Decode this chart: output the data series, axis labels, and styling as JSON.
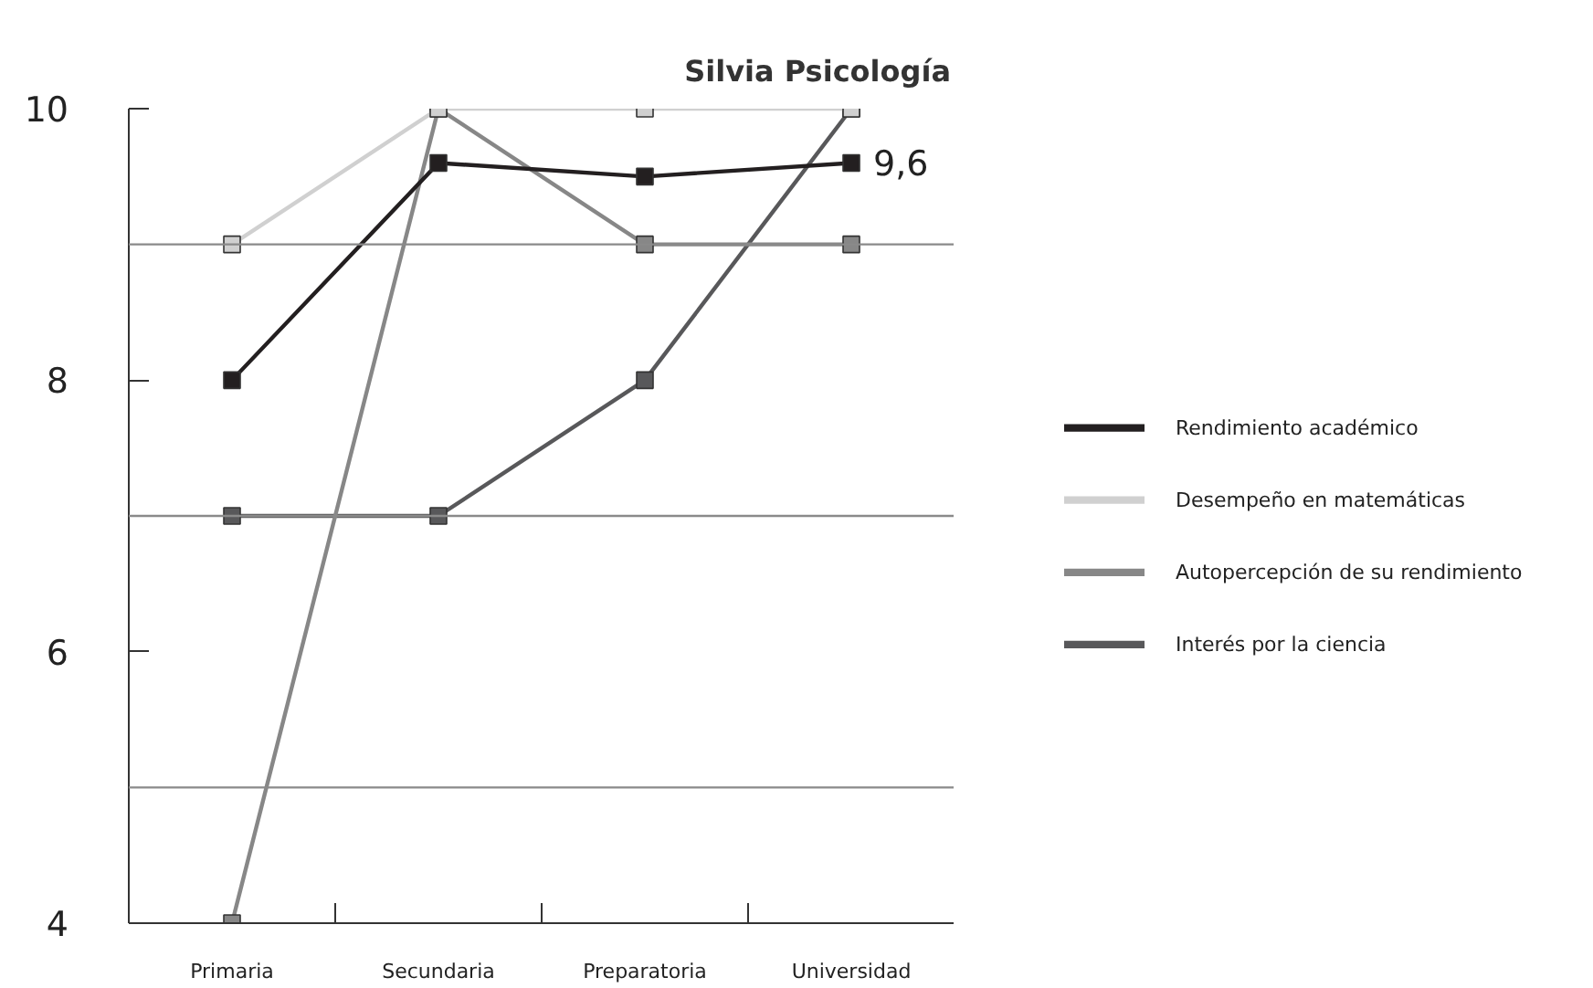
{
  "chart_data": {
    "type": "line",
    "title": "Silvia Psicología",
    "categories": [
      "Primaria",
      "Secundaria",
      "Preparatoria",
      "Universidad"
    ],
    "series": [
      {
        "name": "Rendimiento académico",
        "color": "#231f20",
        "values": [
          8,
          9.6,
          9.5,
          9.6
        ],
        "value_labels": [
          null,
          null,
          null,
          "9,6"
        ]
      },
      {
        "name": "Desempeño en matemáticas",
        "color": "#d0d0d0",
        "values": [
          9,
          10,
          10,
          10
        ]
      },
      {
        "name": "Autopercepción de su rendimiento",
        "color": "#878787",
        "values": [
          4,
          10,
          9,
          9
        ]
      },
      {
        "name": "Interés por la ciencia",
        "color": "#58585a",
        "values": [
          7,
          7,
          8,
          10
        ]
      }
    ],
    "ylim": [
      4,
      10
    ],
    "yticks": [
      4,
      6,
      8,
      10
    ],
    "ref_lines": [
      {
        "axis": "y",
        "value": 9,
        "color": "#8a8a8a"
      },
      {
        "axis": "y",
        "value": 7,
        "color": "#8a8a8a"
      },
      {
        "axis": "y",
        "value": 5,
        "color": "#8a8a8a"
      }
    ],
    "grid": false,
    "legend": "right",
    "marker": "square",
    "line_style": "solid"
  }
}
